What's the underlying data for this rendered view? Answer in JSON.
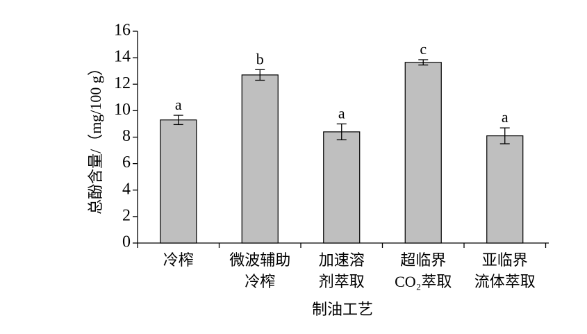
{
  "chart_data": {
    "type": "bar",
    "categories": [
      "冷榨",
      "微波辅助\n冷榨",
      "加速溶\n剂萃取",
      "超临界\nCO₂萃取",
      "亚临界\n流体萃取"
    ],
    "values": [
      9.3,
      12.7,
      8.4,
      13.65,
      8.1
    ],
    "errors": [
      0.35,
      0.4,
      0.6,
      0.2,
      0.6
    ],
    "letters": [
      "a",
      "b",
      "a",
      "c",
      "a"
    ],
    "color": "#bfbfbf",
    "xlabel": "制油工艺",
    "ylabel": "总酚含量/（mg/100 g）",
    "ylim": [
      0,
      16
    ],
    "yticks": [
      0,
      2,
      4,
      6,
      8,
      10,
      12,
      14,
      16
    ]
  }
}
